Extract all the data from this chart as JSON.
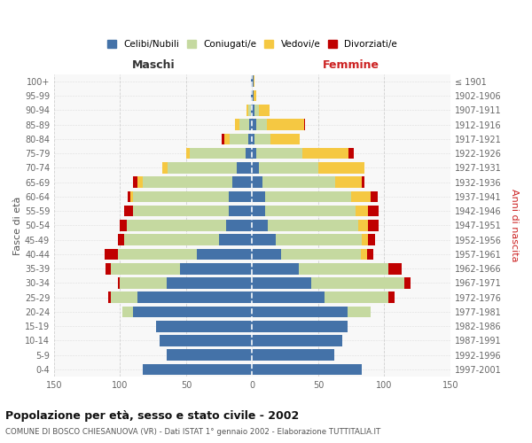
{
  "age_groups": [
    "0-4",
    "5-9",
    "10-14",
    "15-19",
    "20-24",
    "25-29",
    "30-34",
    "35-39",
    "40-44",
    "45-49",
    "50-54",
    "55-59",
    "60-64",
    "65-69",
    "70-74",
    "75-79",
    "80-84",
    "85-89",
    "90-94",
    "95-99",
    "100+"
  ],
  "birth_years": [
    "1997-2001",
    "1992-1996",
    "1987-1991",
    "1982-1986",
    "1977-1981",
    "1972-1976",
    "1967-1971",
    "1962-1966",
    "1957-1961",
    "1952-1956",
    "1947-1951",
    "1942-1946",
    "1937-1941",
    "1932-1936",
    "1927-1931",
    "1922-1926",
    "1917-1921",
    "1912-1916",
    "1907-1911",
    "1902-1906",
    "≤ 1901"
  ],
  "males": {
    "celibi": [
      83,
      65,
      70,
      73,
      90,
      87,
      65,
      55,
      42,
      25,
      20,
      18,
      18,
      15,
      12,
      5,
      3,
      2,
      1,
      1,
      1
    ],
    "coniugati": [
      0,
      0,
      0,
      0,
      8,
      20,
      35,
      52,
      60,
      72,
      75,
      72,
      72,
      68,
      52,
      42,
      14,
      8,
      2,
      0,
      0
    ],
    "vedovi": [
      0,
      0,
      0,
      0,
      0,
      0,
      0,
      0,
      0,
      0,
      0,
      0,
      2,
      4,
      4,
      3,
      4,
      3,
      1,
      0,
      0
    ],
    "divorziati": [
      0,
      0,
      0,
      0,
      0,
      2,
      2,
      4,
      10,
      5,
      5,
      7,
      2,
      3,
      0,
      0,
      2,
      0,
      0,
      0,
      0
    ]
  },
  "females": {
    "nubili": [
      83,
      62,
      68,
      72,
      72,
      55,
      45,
      35,
      22,
      18,
      12,
      10,
      10,
      8,
      5,
      3,
      2,
      3,
      2,
      1,
      1
    ],
    "coniugate": [
      0,
      0,
      0,
      0,
      18,
      48,
      70,
      68,
      60,
      65,
      68,
      68,
      65,
      55,
      45,
      35,
      12,
      8,
      3,
      0,
      0
    ],
    "vedove": [
      0,
      0,
      0,
      0,
      0,
      0,
      0,
      0,
      5,
      5,
      8,
      10,
      15,
      20,
      35,
      35,
      22,
      28,
      8,
      2,
      1
    ],
    "divorziate": [
      0,
      0,
      0,
      0,
      0,
      5,
      5,
      10,
      5,
      5,
      8,
      8,
      5,
      2,
      0,
      4,
      0,
      1,
      0,
      0,
      0
    ]
  },
  "colors": {
    "celibi": "#4472a8",
    "coniugati": "#c5d9a0",
    "vedovi": "#f5c842",
    "divorziati": "#c00000"
  },
  "title": "Popolazione per età, sesso e stato civile - 2002",
  "subtitle": "COMUNE DI BOSCO CHIESANUOVA (VR) - Dati ISTAT 1° gennaio 2002 - Elaborazione TUTTITALIA.IT",
  "xlabel_left": "Maschi",
  "xlabel_right": "Femmine",
  "ylabel_left": "Fasce di età",
  "ylabel_right": "Anni di nascita",
  "xlim": 150,
  "bg_color": "#ffffff",
  "plot_bg": "#f8f8f8",
  "grid_color": "#cccccc",
  "legend_labels": [
    "Celibi/Nubili",
    "Coniugati/e",
    "Vedovi/e",
    "Divorziati/e"
  ]
}
